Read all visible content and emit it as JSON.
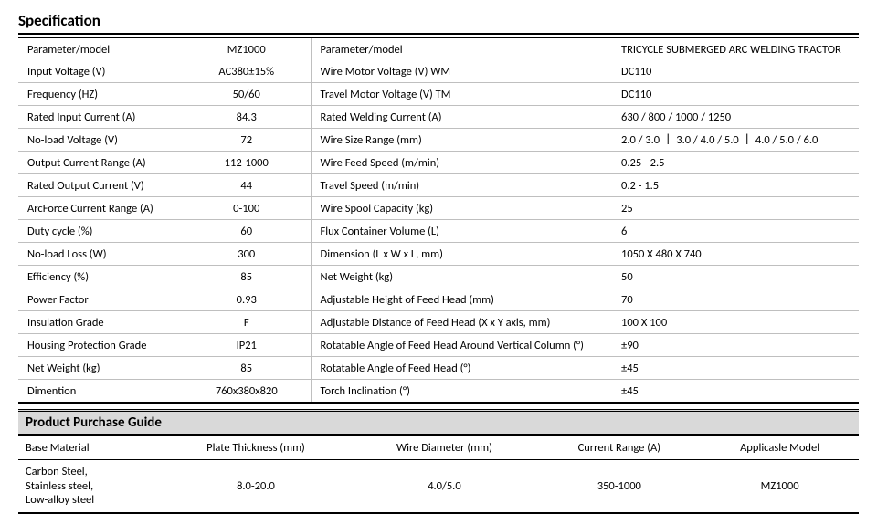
{
  "spec": {
    "title": "Specification",
    "left_header_param": "Parameter/model",
    "left_header_val": "MZ1000",
    "right_header_param": "Parameter/model",
    "right_header_val": "TRICYCLE SUBMERGED ARC WELDING TRACTOR",
    "rows": [
      {
        "lp": "Input Voltage (V)",
        "lv": "AC380±15%",
        "rp": "Wire Motor Voltage (V) WM",
        "rv": "DC110"
      },
      {
        "lp": "Frequency (HZ)",
        "lv": "50/60",
        "rp": "Travel Motor Voltage (V) TM",
        "rv": "DC110"
      },
      {
        "lp": "Rated Input Current (A)",
        "lv": "84.3",
        "rp": "Rated Welding Current (A)",
        "rv": "630 / 800 / 1000 / 1250"
      },
      {
        "lp": "No-load Voltage (V)",
        "lv": "72",
        "rp": "Wire Size Range (mm)",
        "rv": "2.0 / 3.0 丨 3.0 / 4.0 / 5.0 丨 4.0 / 5.0 / 6.0"
      },
      {
        "lp": "Output Current Range (A)",
        "lv": "112-1000",
        "rp": "Wire Feed Speed (m/min)",
        "rv": "0.25 - 2.5"
      },
      {
        "lp": "Rated Output Current (V)",
        "lv": "44",
        "rp": "Travel Speed (m/min)",
        "rv": "0.2 - 1.5"
      },
      {
        "lp": "ArcForce Current Range (A)",
        "lv": "0-100",
        "rp": "Wire Spool Capacity (kg)",
        "rv": "25"
      },
      {
        "lp": "Duty cycle (%)",
        "lv": "60",
        "rp": "Flux Container Volume (L)",
        "rv": "6"
      },
      {
        "lp": "No-load Loss (W)",
        "lv": "300",
        "rp": "Dimension (L x W x L, mm)",
        "rv": "1050 X 480 X 740"
      },
      {
        "lp": "Efficiency (%)",
        "lv": "85",
        "rp": "Net Weight (kg)",
        "rv": "50"
      },
      {
        "lp": "Power Factor",
        "lv": "0.93",
        "rp": "Adjustable Height of Feed Head (mm)",
        "rv": "70"
      },
      {
        "lp": "Insulation Grade",
        "lv": "F",
        "rp": "Adjustable Distance of Feed Head (X x Y axis, mm)",
        "rv": "100 X 100"
      },
      {
        "lp": "Housing Protection Grade",
        "lv": "IP21",
        "rp": "Rotatable Angle of Feed Head Around Vertical Column (°)",
        "rv": "±90"
      },
      {
        "lp": "Net Weight (kg)",
        "lv": "85",
        "rp": "Rotatable Angle of Feed Head (°)",
        "rv": "±45"
      },
      {
        "lp": "Dimention",
        "lv": "760x380x820",
        "rp": "Torch Inclination (°)",
        "rv": "±45"
      }
    ]
  },
  "guide": {
    "title": "Product Purchase Guide",
    "columns": [
      "Base Material",
      "Plate Thickness (mm)",
      "Wire Diameter (mm)",
      "Current Range (A)",
      "Applicasle Model"
    ],
    "row": {
      "material": "Carbon Steel,\nStainless steel,\nLow-alloy steel",
      "thickness": "8.0-20.0",
      "wire": "4.0/5.0",
      "current": "350-1000",
      "model": "MZ1000"
    }
  }
}
